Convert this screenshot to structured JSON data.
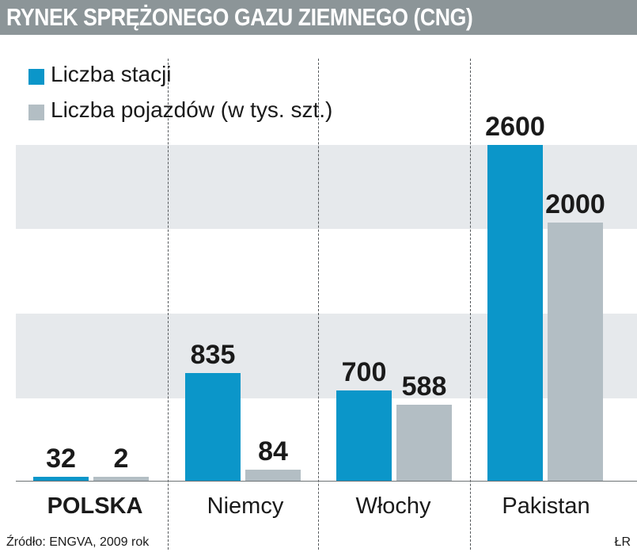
{
  "chart_data": {
    "type": "bar",
    "title": "RYNEK SPRĘŻONEGO GAZU ZIEMNEGO (CNG)",
    "categories": [
      "POLSKA",
      "Niemcy",
      "Włochy",
      "Pakistan"
    ],
    "series": [
      {
        "name": "Liczba stacji",
        "values": [
          32,
          835,
          700,
          2600
        ],
        "color": "#0b96c9"
      },
      {
        "name": "Liczba pojazdów (w tys. szt.)",
        "values": [
          2,
          84,
          588,
          2000
        ],
        "color": "#b3bec4"
      }
    ],
    "ylim": [
      0,
      2600
    ],
    "value_labels": [
      [
        "32",
        "835",
        "700",
        "2600"
      ],
      [
        "2",
        "84",
        "588",
        "2000"
      ]
    ],
    "legend_position": "top-left",
    "grid": "alternating horizontal bands"
  },
  "legend": {
    "items": [
      {
        "label": "Liczba stacji",
        "color": "#0b96c9"
      },
      {
        "label": "Liczba pojazdów (w tys. szt.)",
        "color": "#b3bec4"
      }
    ]
  },
  "footer": {
    "source": "Źródło: ENGVA, 2009 rok",
    "author": "ŁR"
  }
}
